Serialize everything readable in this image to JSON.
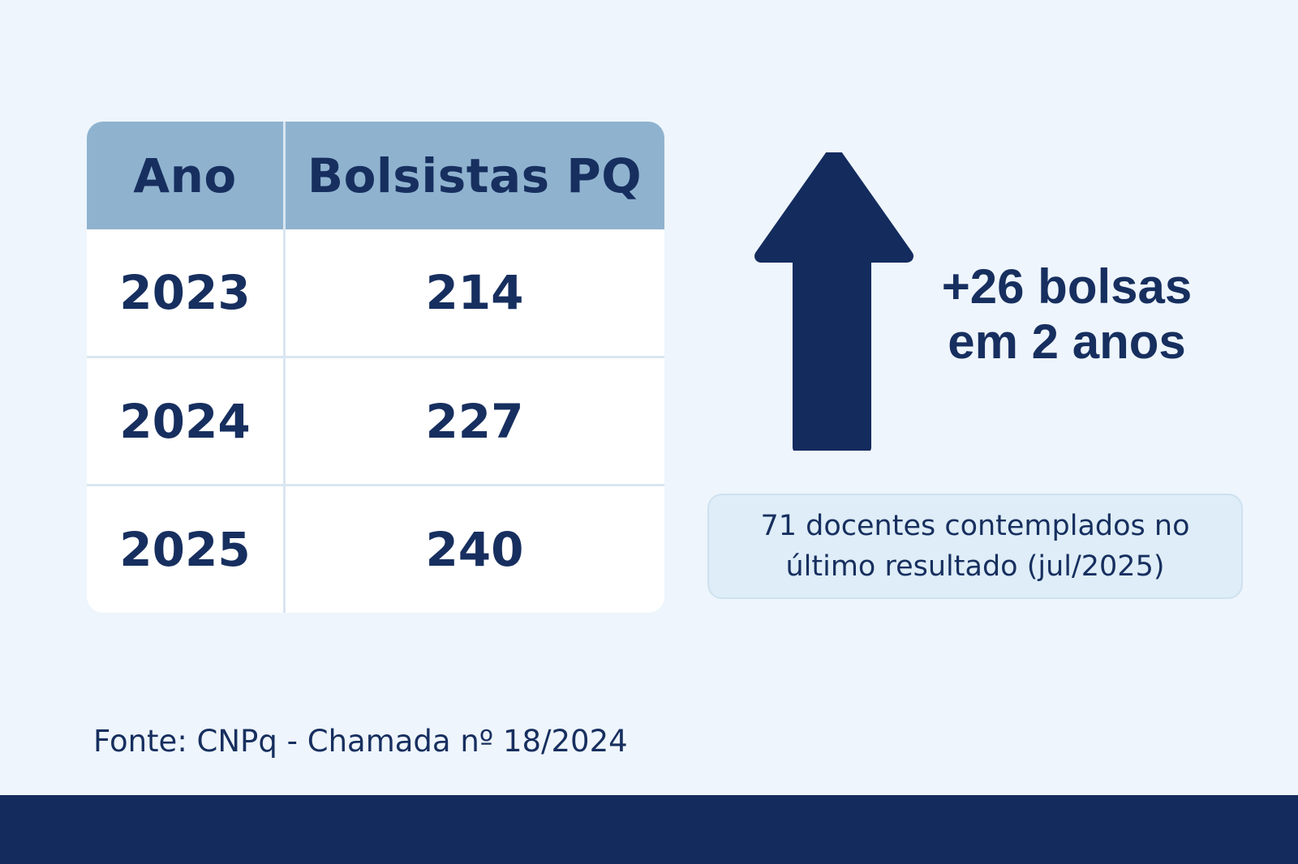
{
  "chart_data": {
    "type": "table",
    "columns": [
      "Ano",
      "Bolsistas PQ"
    ],
    "rows": [
      {
        "year": "2023",
        "value": "214"
      },
      {
        "year": "2024",
        "value": "227"
      },
      {
        "year": "2025",
        "value": "240"
      }
    ]
  },
  "highlight": {
    "line1": "+26 bolsas",
    "line2": "em 2 anos",
    "icon": "arrow-up-icon"
  },
  "callout": {
    "line1": "71 docentes contemplados no",
    "line2": "último resultado (jul/2025)"
  },
  "source": "Fonte: CNPq - Chamada nº 18/2024",
  "colors": {
    "background": "#eef5fc",
    "header": "#8fb3cf",
    "text": "#172f5f",
    "arrow": "#142b5e",
    "callout_bg": "#deedf7",
    "footer": "#142b5e"
  }
}
